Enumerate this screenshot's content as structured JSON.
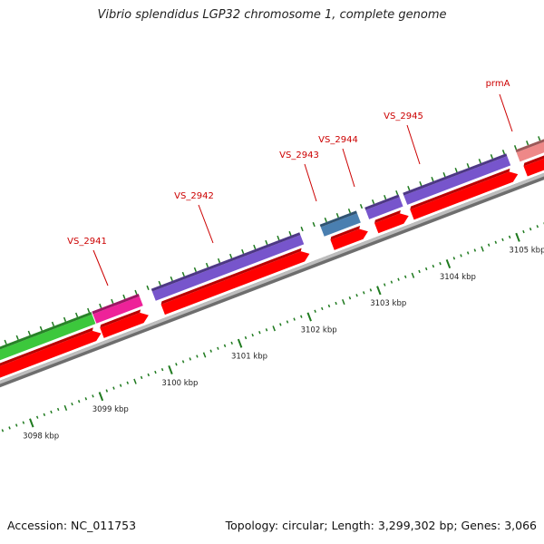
{
  "title": "Vibrio splendidus LGP32 chromosome 1, complete genome",
  "footer": {
    "accession": "Accession: NC_011753",
    "summary": "Topology: circular; Length: 3,299,302 bp; Genes: 3,066"
  },
  "colors": {
    "backbone": "#8c8c8c",
    "tick": "#1f7a1f",
    "cds": "#ff0000",
    "gene_label": "#cc0000",
    "scale_label": "#222222"
  },
  "scale_labels": [
    "3098 kbp",
    "3099 kbp",
    "3100 kbp",
    "3101 kbp",
    "3102 kbp",
    "3103 kbp",
    "3104 kbp",
    "3105 kbp"
  ],
  "genes": [
    {
      "label": "",
      "color": "#3cc83c"
    },
    {
      "label": "VS_2941",
      "color": "#ee2299"
    },
    {
      "label": "VS_2942",
      "color": "#7755cc"
    },
    {
      "label": "VS_2943",
      "color": "#4a7fb0"
    },
    {
      "label": "VS_2944",
      "color": "#7755cc"
    },
    {
      "label": "VS_2945",
      "color": "#7755cc"
    },
    {
      "label": "prmA",
      "color": "#ee8888"
    }
  ]
}
